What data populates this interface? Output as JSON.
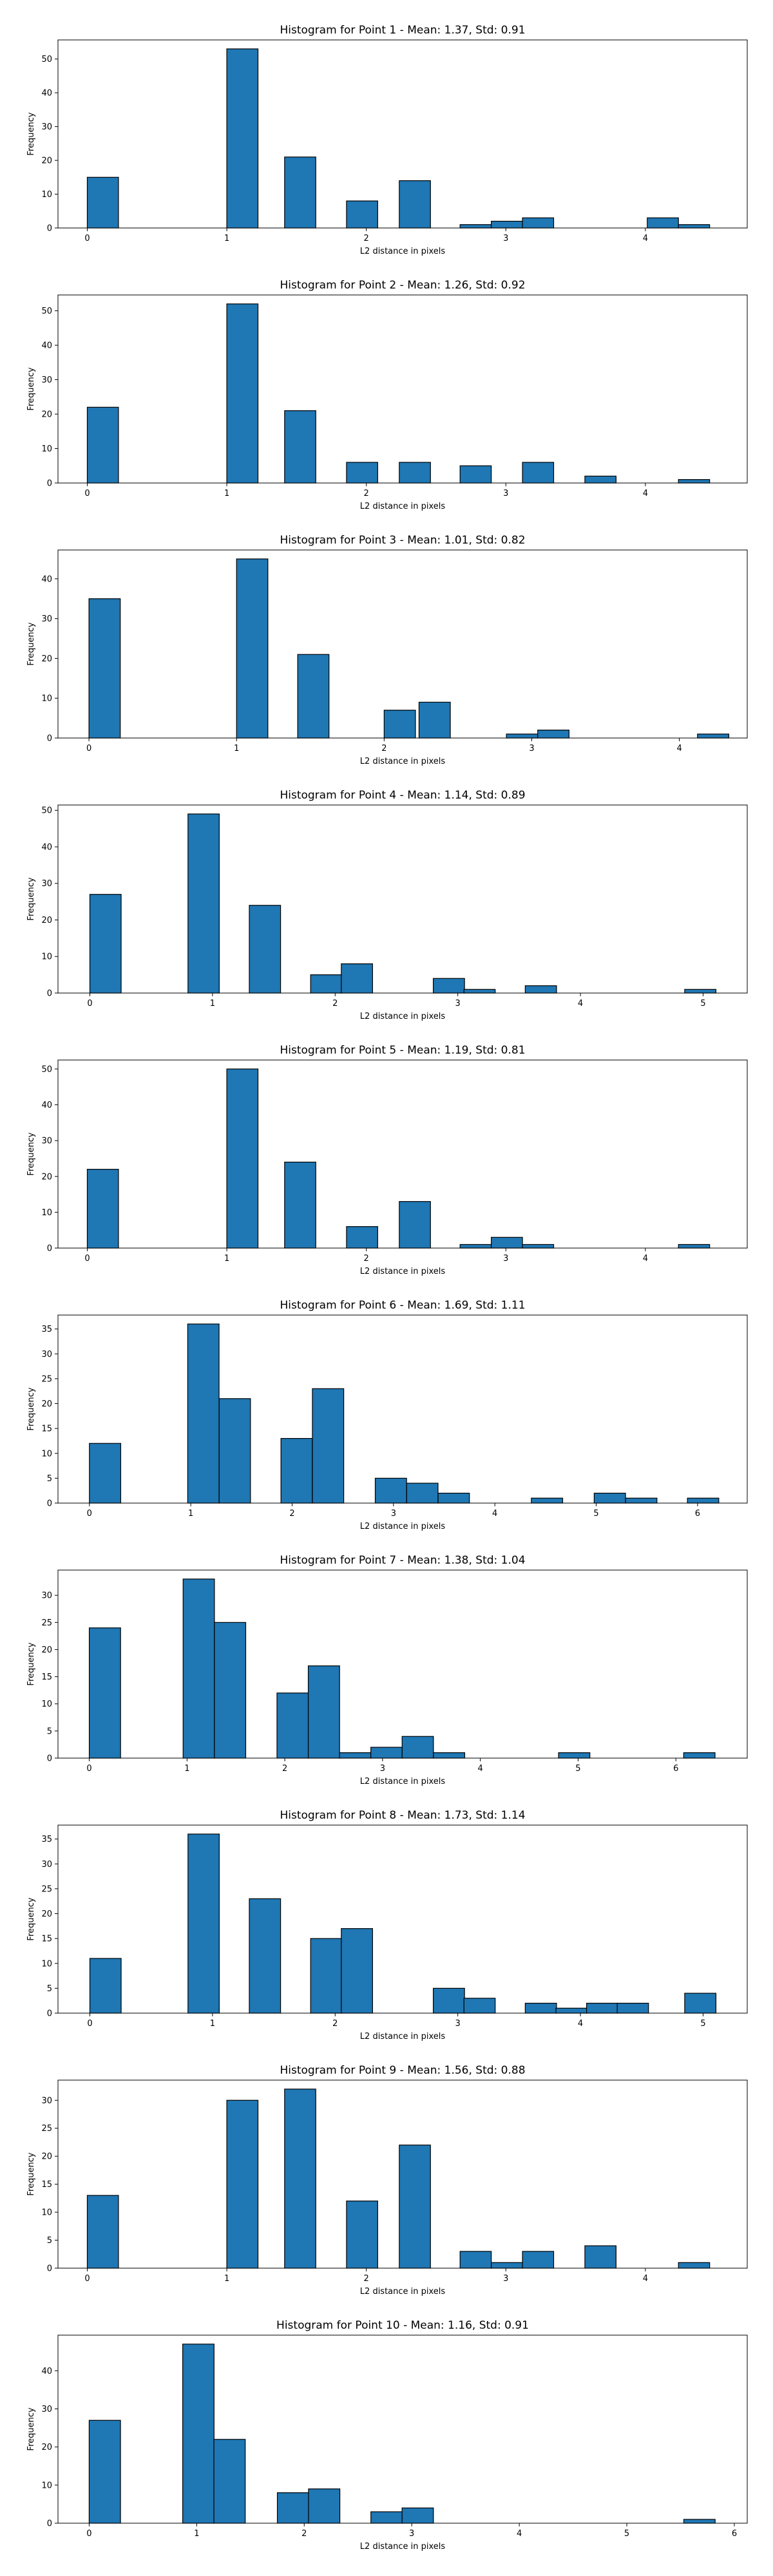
{
  "chart_data": [
    {
      "type": "bar",
      "title": "Histogram for Point 1 - Mean: 1.37, Std: 0.91",
      "xlabel": "L2 distance in pixels",
      "ylabel": "Frequency",
      "xlim": [
        -0.21,
        4.73
      ],
      "ylim": [
        0,
        55.65
      ],
      "xticks": [
        0,
        1,
        2,
        3,
        4
      ],
      "yticks": [
        0,
        10,
        20,
        30,
        40,
        50
      ],
      "bin_width": 0.2236,
      "bins": [
        {
          "x": 0,
          "count": 15
        },
        {
          "x": 1,
          "count": 53
        },
        {
          "x": 1.4142,
          "count": 21
        },
        {
          "x": 1.8579,
          "count": 8
        },
        {
          "x": 2.2361,
          "count": 14
        },
        {
          "x": 2.6719,
          "count": 1
        },
        {
          "x": 2.8955,
          "count": 2
        },
        {
          "x": 3.1191,
          "count": 3
        },
        {
          "x": 4.0134,
          "count": 3
        },
        {
          "x": 4.237,
          "count": 1
        }
      ]
    },
    {
      "type": "bar",
      "title": "Histogram for Point 2 - Mean: 1.26, Std: 0.92",
      "xlabel": "L2 distance in pixels",
      "ylabel": "Frequency",
      "xlim": [
        -0.21,
        4.73
      ],
      "ylim": [
        0,
        54.6
      ],
      "xticks": [
        0,
        1,
        2,
        3,
        4
      ],
      "yticks": [
        0,
        10,
        20,
        30,
        40,
        50
      ],
      "bin_width": 0.2236,
      "bins": [
        {
          "x": 0,
          "count": 22
        },
        {
          "x": 1,
          "count": 52
        },
        {
          "x": 1.4142,
          "count": 21
        },
        {
          "x": 1.8579,
          "count": 6
        },
        {
          "x": 2.2361,
          "count": 6
        },
        {
          "x": 2.6719,
          "count": 5
        },
        {
          "x": 3.1191,
          "count": 6
        },
        {
          "x": 3.5663,
          "count": 2
        },
        {
          "x": 4.237,
          "count": 1
        }
      ]
    },
    {
      "type": "bar",
      "title": "Histogram for Point 3 - Mean: 1.01, Std: 0.82",
      "xlabel": "L2 distance in pixels",
      "ylabel": "Frequency",
      "xlim": [
        -0.21,
        4.46
      ],
      "ylim": [
        0,
        47.25
      ],
      "xticks": [
        0,
        1,
        2,
        3,
        4
      ],
      "yticks": [
        0,
        10,
        20,
        30,
        40
      ],
      "bin_width": 0.2121,
      "bins": [
        {
          "x": 0,
          "count": 35
        },
        {
          "x": 1,
          "count": 45
        },
        {
          "x": 1.4142,
          "count": 21
        },
        {
          "x": 2,
          "count": 7
        },
        {
          "x": 2.2361,
          "count": 9
        },
        {
          "x": 2.8284,
          "count": 1
        },
        {
          "x": 3.0405,
          "count": 2
        },
        {
          "x": 4.1231,
          "count": 1
        }
      ]
    },
    {
      "type": "bar",
      "title": "Histogram for Point 4 - Mean: 1.14, Std: 0.89",
      "xlabel": "L2 distance in pixels",
      "ylabel": "Frequency",
      "xlim": [
        -0.26,
        5.36
      ],
      "ylim": [
        0,
        51.45
      ],
      "xticks": [
        0,
        1,
        2,
        3,
        4,
        5
      ],
      "yticks": [
        0,
        10,
        20,
        30,
        40,
        50
      ],
      "bin_width": 0.255,
      "bins": [
        {
          "x": 0,
          "count": 27
        },
        {
          "x": 0.8,
          "count": 49
        },
        {
          "x": 1.3,
          "count": 24
        },
        {
          "x": 1.8,
          "count": 5
        },
        {
          "x": 2.05,
          "count": 8
        },
        {
          "x": 2.8,
          "count": 4
        },
        {
          "x": 3.05,
          "count": 1
        },
        {
          "x": 3.55,
          "count": 2
        },
        {
          "x": 4.85,
          "count": 1
        }
      ]
    },
    {
      "type": "bar",
      "title": "Histogram for Point 5 - Mean: 1.19, Std: 0.81",
      "xlabel": "L2 distance in pixels",
      "ylabel": "Frequency",
      "xlim": [
        -0.21,
        4.73
      ],
      "ylim": [
        0,
        52.5
      ],
      "xticks": [
        0,
        1,
        2,
        3,
        4
      ],
      "yticks": [
        0,
        10,
        20,
        30,
        40,
        50
      ],
      "bin_width": 0.2236,
      "bins": [
        {
          "x": 0,
          "count": 22
        },
        {
          "x": 1,
          "count": 50
        },
        {
          "x": 1.4142,
          "count": 24
        },
        {
          "x": 1.8579,
          "count": 6
        },
        {
          "x": 2.2361,
          "count": 13
        },
        {
          "x": 2.6719,
          "count": 1
        },
        {
          "x": 2.8955,
          "count": 3
        },
        {
          "x": 3.1191,
          "count": 1
        },
        {
          "x": 4.237,
          "count": 1
        }
      ]
    },
    {
      "type": "bar",
      "title": "Histogram for Point 6 - Mean: 1.69, Std: 1.11",
      "xlabel": "L2 distance in pixels",
      "ylabel": "Frequency",
      "xlim": [
        -0.31,
        6.49
      ],
      "ylim": [
        0,
        37.8
      ],
      "xticks": [
        0,
        1,
        2,
        3,
        4,
        5,
        6
      ],
      "yticks": [
        0,
        5,
        10,
        15,
        20,
        25,
        30,
        35
      ],
      "bin_width": 0.3092,
      "bins": [
        {
          "x": 0,
          "count": 12
        },
        {
          "x": 0.97,
          "count": 36
        },
        {
          "x": 1.28,
          "count": 21
        },
        {
          "x": 1.89,
          "count": 13
        },
        {
          "x": 2.2,
          "count": 23
        },
        {
          "x": 2.82,
          "count": 5
        },
        {
          "x": 3.13,
          "count": 4
        },
        {
          "x": 3.44,
          "count": 2
        },
        {
          "x": 4.36,
          "count": 1
        },
        {
          "x": 4.98,
          "count": 2
        },
        {
          "x": 5.29,
          "count": 1
        },
        {
          "x": 5.9,
          "count": 1
        }
      ]
    },
    {
      "type": "bar",
      "title": "Histogram for Point 7 - Mean: 1.38, Std: 1.04",
      "xlabel": "L2 distance in pixels",
      "ylabel": "Frequency",
      "xlim": [
        -0.32,
        6.73
      ],
      "ylim": [
        0,
        34.65
      ],
      "xticks": [
        0,
        1,
        2,
        3,
        4,
        5,
        6
      ],
      "yticks": [
        0,
        5,
        10,
        15,
        20,
        25,
        30
      ],
      "bin_width": 0.3204,
      "bins": [
        {
          "x": 0,
          "count": 24
        },
        {
          "x": 0.96,
          "count": 33
        },
        {
          "x": 1.28,
          "count": 25
        },
        {
          "x": 1.92,
          "count": 12
        },
        {
          "x": 2.24,
          "count": 17
        },
        {
          "x": 2.56,
          "count": 1
        },
        {
          "x": 2.88,
          "count": 2
        },
        {
          "x": 3.2,
          "count": 4
        },
        {
          "x": 3.52,
          "count": 1
        },
        {
          "x": 4.8,
          "count": 1
        },
        {
          "x": 6.08,
          "count": 1
        }
      ]
    },
    {
      "type": "bar",
      "title": "Histogram for Point 8 - Mean: 1.73, Std: 1.14",
      "xlabel": "L2 distance in pixels",
      "ylabel": "Frequency",
      "xlim": [
        -0.26,
        5.36
      ],
      "ylim": [
        0,
        37.8
      ],
      "xticks": [
        0,
        1,
        2,
        3,
        4,
        5
      ],
      "yticks": [
        0,
        5,
        10,
        15,
        20,
        25,
        30,
        35
      ],
      "bin_width": 0.255,
      "bins": [
        {
          "x": 0,
          "count": 11
        },
        {
          "x": 0.8,
          "count": 36
        },
        {
          "x": 1.3,
          "count": 23
        },
        {
          "x": 1.8,
          "count": 15
        },
        {
          "x": 2.05,
          "count": 17
        },
        {
          "x": 2.8,
          "count": 5
        },
        {
          "x": 3.05,
          "count": 3
        },
        {
          "x": 3.55,
          "count": 2
        },
        {
          "x": 3.8,
          "count": 1
        },
        {
          "x": 4.05,
          "count": 2
        },
        {
          "x": 4.3,
          "count": 2
        },
        {
          "x": 4.85,
          "count": 4
        }
      ]
    },
    {
      "type": "bar",
      "title": "Histogram for Point 9 - Mean: 1.56, Std: 0.88",
      "xlabel": "L2 distance in pixels",
      "ylabel": "Frequency",
      "xlim": [
        -0.21,
        4.73
      ],
      "ylim": [
        0,
        33.6
      ],
      "xticks": [
        0,
        1,
        2,
        3,
        4
      ],
      "yticks": [
        0,
        5,
        10,
        15,
        20,
        25,
        30
      ],
      "bin_width": 0.2236,
      "bins": [
        {
          "x": 0,
          "count": 13
        },
        {
          "x": 1,
          "count": 30
        },
        {
          "x": 1.4142,
          "count": 32
        },
        {
          "x": 1.8579,
          "count": 12
        },
        {
          "x": 2.2361,
          "count": 22
        },
        {
          "x": 2.6719,
          "count": 3
        },
        {
          "x": 2.8955,
          "count": 1
        },
        {
          "x": 3.1191,
          "count": 3
        },
        {
          "x": 3.5663,
          "count": 4
        },
        {
          "x": 4.237,
          "count": 1
        }
      ]
    },
    {
      "type": "bar",
      "title": "Histogram for Point 10 - Mean: 1.16, Std: 0.91",
      "xlabel": "L2 distance in pixels",
      "ylabel": "Frequency",
      "xlim": [
        -0.29,
        6.12
      ],
      "ylim": [
        0,
        49.35
      ],
      "xticks": [
        0,
        1,
        2,
        3,
        4,
        5,
        6
      ],
      "yticks": [
        0,
        10,
        20,
        30,
        40
      ],
      "bin_width": 0.2915,
      "bins": [
        {
          "x": 0,
          "count": 27
        },
        {
          "x": 0.87,
          "count": 47
        },
        {
          "x": 1.16,
          "count": 22
        },
        {
          "x": 1.75,
          "count": 8
        },
        {
          "x": 2.04,
          "count": 9
        },
        {
          "x": 2.62,
          "count": 3
        },
        {
          "x": 2.91,
          "count": 4
        },
        {
          "x": 5.53,
          "count": 1
        }
      ]
    }
  ]
}
